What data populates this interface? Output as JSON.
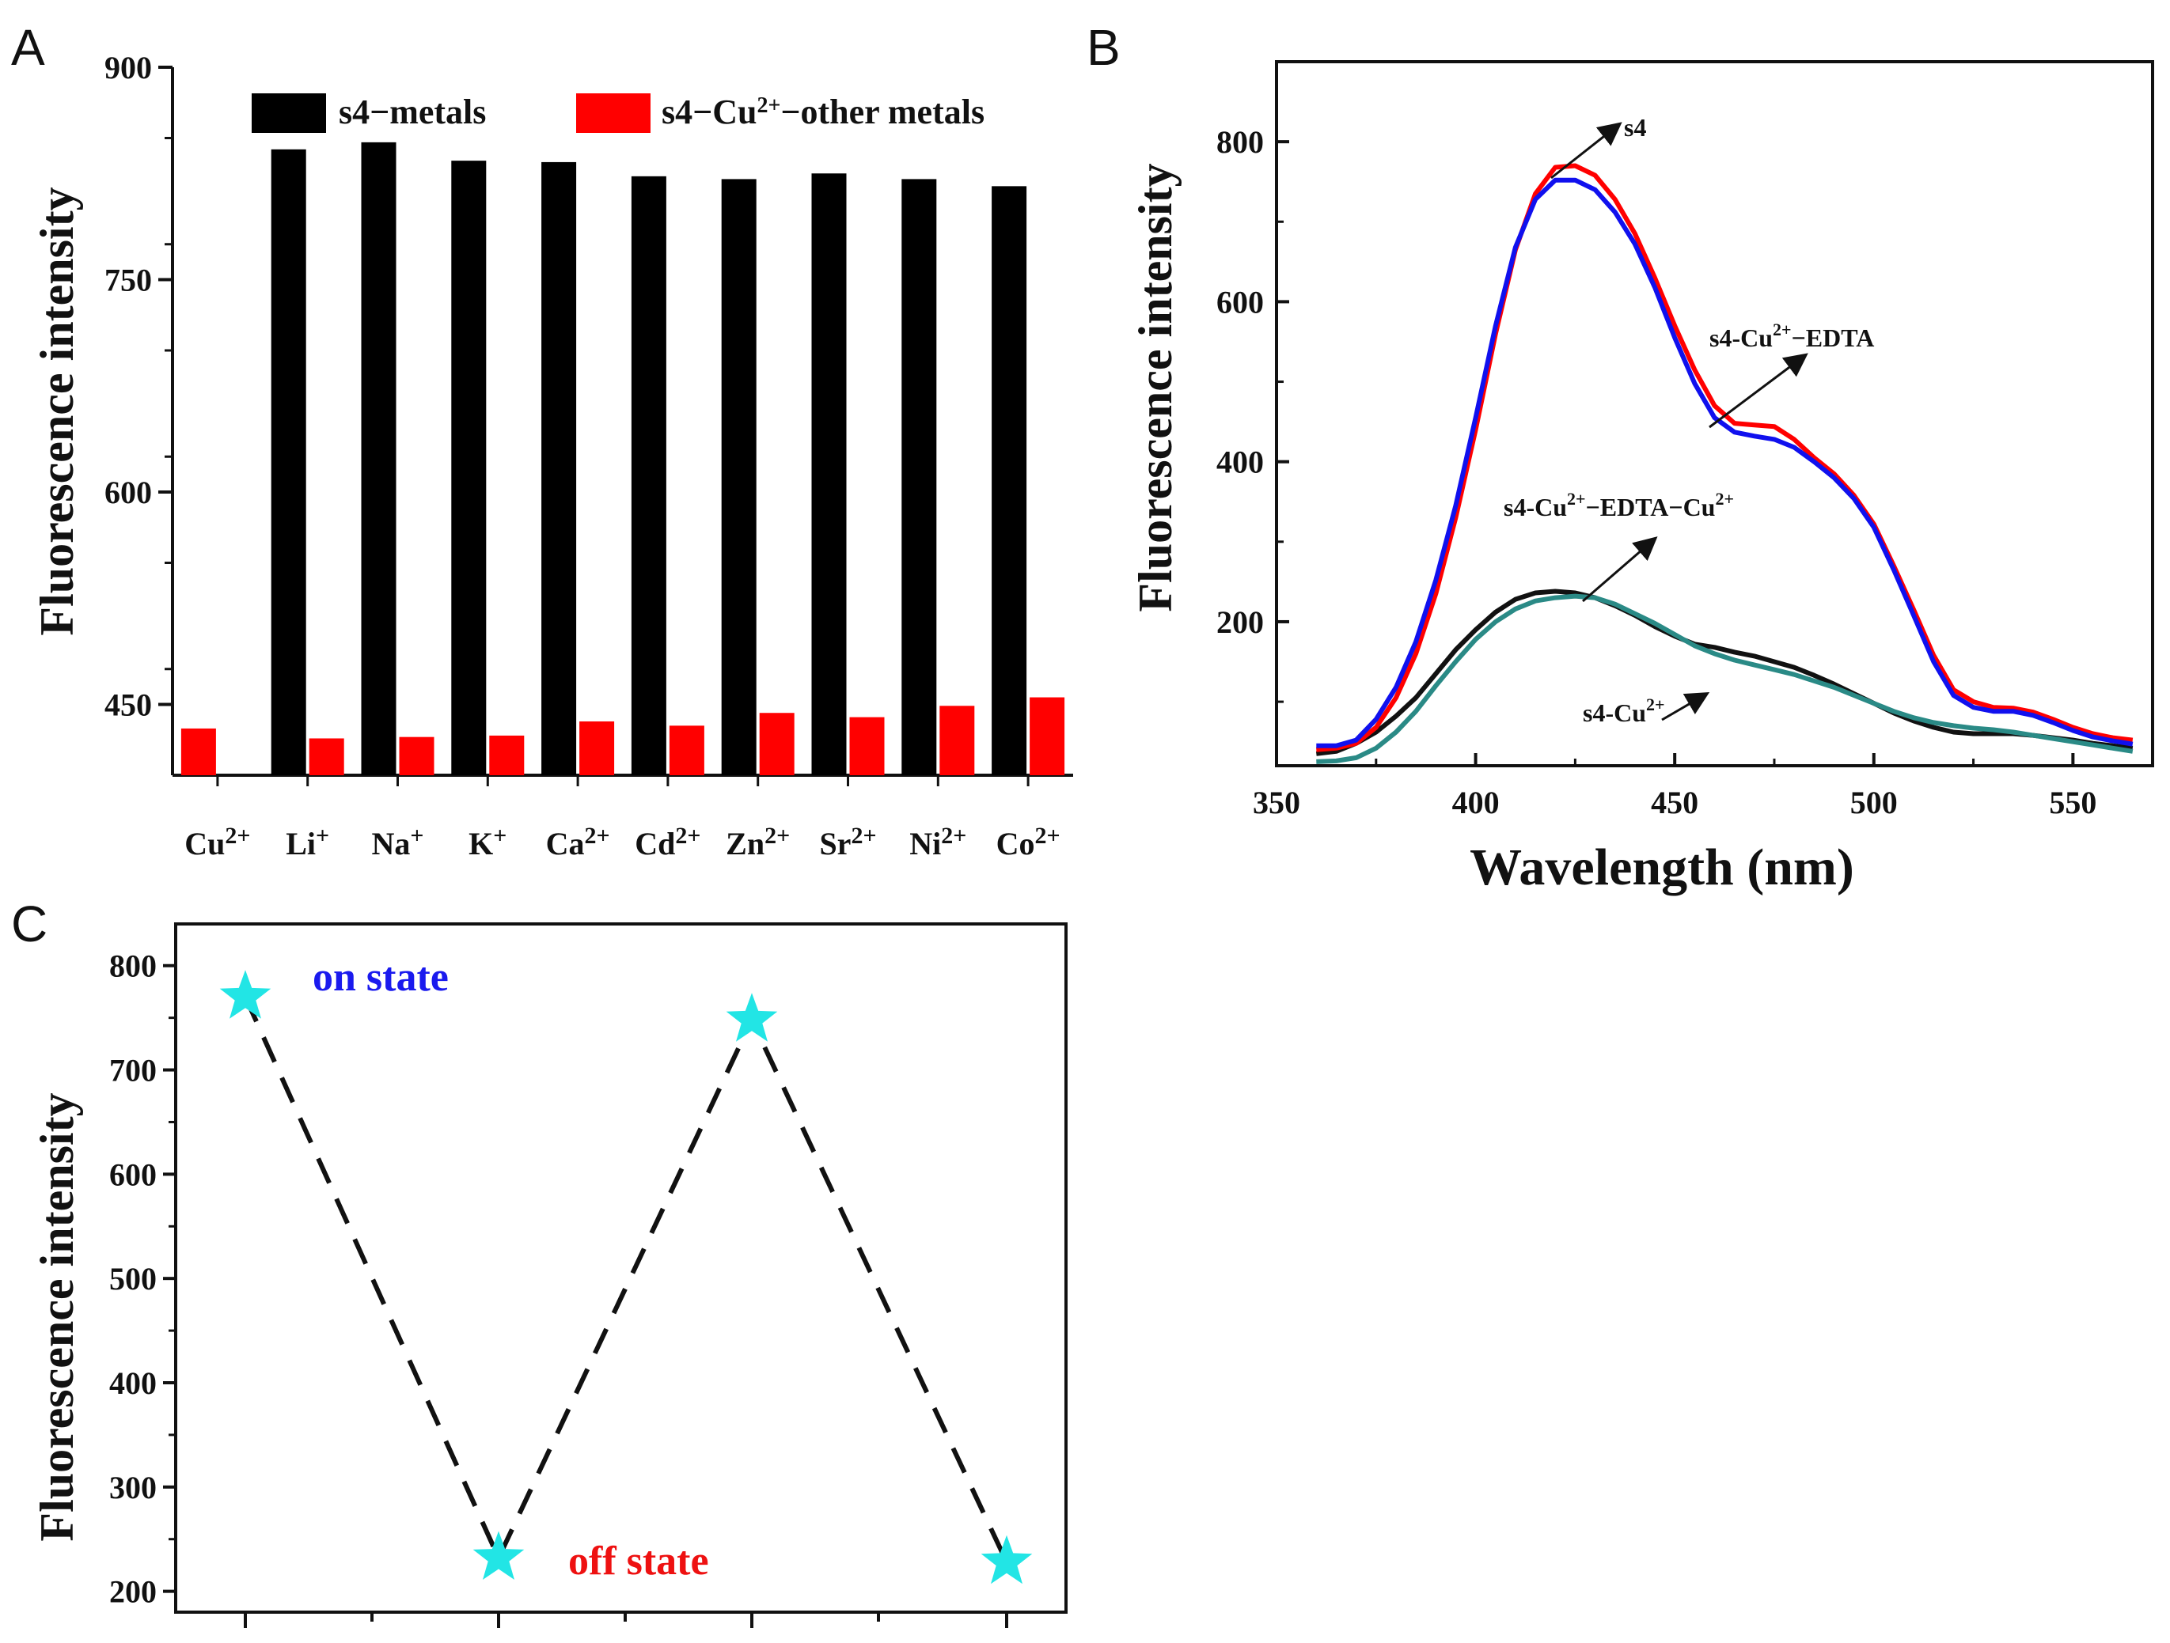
{
  "chart_data": [
    {
      "panel": "A",
      "type": "bar",
      "ylabel": "Fluorescence intensity",
      "ylim": [
        400,
        900
      ],
      "yticks": [
        450,
        600,
        750,
        900
      ],
      "categories": [
        {
          "base": "Cu",
          "sup": "2+"
        },
        {
          "base": "Li",
          "sup": "+"
        },
        {
          "base": "Na",
          "sup": "+"
        },
        {
          "base": "K",
          "sup": "+"
        },
        {
          "base": "Ca",
          "sup": "2+"
        },
        {
          "base": "Cd",
          "sup": "2+"
        },
        {
          "base": "Zn",
          "sup": "2+"
        },
        {
          "base": "Sr",
          "sup": "2+"
        },
        {
          "base": "Ni",
          "sup": "2+"
        },
        {
          "base": "Co",
          "sup": "2+"
        }
      ],
      "series": [
        {
          "name": "s4−metals",
          "color": "#000000",
          "values": [
            null,
            842,
            847,
            834,
            833,
            823,
            821,
            825,
            821,
            816
          ]
        },
        {
          "name_parts": [
            "s4−Cu",
            "2+",
            "−other metals"
          ],
          "color": "#ff0000",
          "values": [
            433,
            426,
            427,
            428,
            438,
            435,
            444,
            441,
            449,
            455
          ]
        }
      ]
    },
    {
      "panel": "B",
      "type": "line",
      "xlabel": "Wavelength (nm)",
      "ylabel": "Fluorescence intensity",
      "xlim": [
        350,
        570
      ],
      "ylim": [
        20,
        900
      ],
      "xticks": [
        350,
        400,
        450,
        500,
        550
      ],
      "yticks": [
        200,
        400,
        600,
        800
      ],
      "series": [
        {
          "name": "s4",
          "color": "#ff0000",
          "x": [
            360,
            365,
            370,
            375,
            380,
            385,
            390,
            395,
            400,
            405,
            410,
            415,
            420,
            425,
            430,
            435,
            440,
            445,
            450,
            455,
            460,
            465,
            470,
            475,
            480,
            485,
            490,
            495,
            500,
            505,
            510,
            515,
            520,
            525,
            530,
            535,
            540,
            545,
            550,
            555,
            560,
            565
          ],
          "y": [
            40,
            42,
            48,
            68,
            105,
            160,
            235,
            330,
            440,
            560,
            665,
            735,
            768,
            770,
            758,
            728,
            685,
            630,
            570,
            515,
            470,
            448,
            446,
            444,
            428,
            405,
            385,
            358,
            322,
            270,
            215,
            158,
            115,
            100,
            93,
            92,
            87,
            78,
            68,
            60,
            55,
            52
          ]
        },
        {
          "name": "s4-Cu2+−EDTA",
          "color": "#1010ee",
          "x": [
            360,
            365,
            370,
            375,
            380,
            385,
            390,
            395,
            400,
            405,
            410,
            415,
            420,
            425,
            430,
            435,
            440,
            445,
            450,
            455,
            460,
            465,
            470,
            475,
            480,
            485,
            490,
            495,
            500,
            505,
            510,
            515,
            520,
            525,
            530,
            535,
            540,
            545,
            550,
            555,
            560,
            565
          ],
          "y": [
            45,
            45,
            52,
            78,
            118,
            175,
            252,
            345,
            455,
            570,
            668,
            728,
            752,
            752,
            740,
            712,
            672,
            618,
            555,
            498,
            455,
            437,
            432,
            428,
            418,
            400,
            380,
            354,
            318,
            265,
            208,
            150,
            108,
            93,
            88,
            88,
            83,
            74,
            64,
            56,
            51,
            47
          ]
        },
        {
          "name": "s4-Cu2+−EDTA−Cu2+",
          "color": "#111111",
          "x": [
            360,
            365,
            370,
            375,
            380,
            385,
            390,
            395,
            400,
            405,
            410,
            415,
            420,
            425,
            430,
            435,
            440,
            445,
            450,
            455,
            460,
            465,
            470,
            475,
            480,
            485,
            490,
            495,
            500,
            505,
            510,
            515,
            520,
            525,
            530,
            535,
            540,
            545,
            550,
            555,
            560,
            565
          ],
          "y": [
            35,
            38,
            48,
            62,
            82,
            105,
            135,
            165,
            190,
            212,
            228,
            236,
            238,
            236,
            230,
            220,
            208,
            194,
            182,
            172,
            168,
            162,
            157,
            150,
            143,
            133,
            122,
            110,
            98,
            86,
            76,
            68,
            62,
            60,
            60,
            60,
            58,
            55,
            52,
            48,
            45,
            42
          ]
        },
        {
          "name": "s4-Cu2+",
          "color": "#2a8a86",
          "x": [
            360,
            365,
            370,
            375,
            380,
            385,
            390,
            395,
            400,
            405,
            410,
            415,
            420,
            425,
            430,
            435,
            440,
            445,
            450,
            455,
            460,
            465,
            470,
            475,
            480,
            485,
            490,
            495,
            500,
            505,
            510,
            515,
            520,
            525,
            530,
            535,
            540,
            545,
            550,
            555,
            560,
            565
          ],
          "y": [
            25,
            26,
            30,
            42,
            62,
            88,
            120,
            150,
            178,
            200,
            216,
            226,
            230,
            232,
            230,
            222,
            210,
            198,
            184,
            170,
            160,
            152,
            146,
            140,
            134,
            126,
            118,
            108,
            98,
            88,
            80,
            74,
            70,
            67,
            65,
            62,
            58,
            54,
            50,
            46,
            42,
            38
          ]
        }
      ],
      "annotations": [
        {
          "parts": [
            "s4"
          ],
          "target": "s4"
        },
        {
          "parts": [
            "s4-Cu",
            "2+",
            "−EDTA"
          ],
          "target": "s4-Cu2+−EDTA"
        },
        {
          "parts": [
            "s4-Cu",
            "2+",
            "−EDTA−Cu",
            "2+"
          ],
          "target": "s4-Cu2+−EDTA−Cu2+"
        },
        {
          "parts": [
            "s4-Cu",
            "2+"
          ],
          "target": "s4-Cu2+"
        }
      ]
    },
    {
      "panel": "C",
      "type": "scatter",
      "ylabel": "Fluorescence intensity",
      "ylim": [
        180,
        840
      ],
      "yticks": [
        200,
        300,
        400,
        500,
        600,
        700,
        800
      ],
      "x": [
        1,
        2,
        3,
        4
      ],
      "y": [
        770,
        232,
        748,
        228
      ],
      "marker": "star",
      "marker_color": "#22e5e5",
      "line_style": "dashed",
      "annotations": [
        {
          "text": "on state",
          "color": "#1a1aee"
        },
        {
          "text": "off state",
          "color": "#ee1111"
        }
      ]
    }
  ],
  "panel_letters": [
    "A",
    "B",
    "C"
  ]
}
